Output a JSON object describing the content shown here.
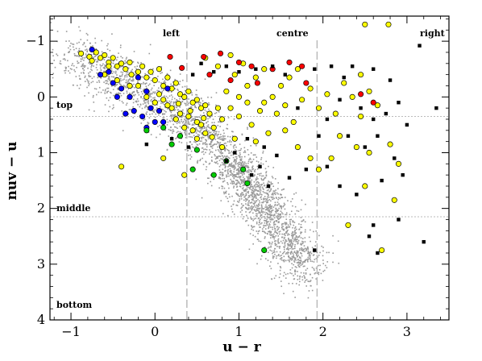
{
  "chart_data": {
    "type": "scatter",
    "xlabel": "u − r",
    "ylabel": "nuv − u",
    "xlim": [
      -1.25,
      3.5
    ],
    "ylim": [
      4,
      -1.45
    ],
    "y_inverted": true,
    "grid": false,
    "x_ticks": [
      -1,
      0,
      1,
      2,
      3
    ],
    "y_ticks": [
      -1,
      0,
      1,
      2,
      3,
      4
    ],
    "x_tick_labels": [
      "−1",
      "0",
      "1",
      "2",
      "3"
    ],
    "y_tick_labels": [
      "−1",
      "0",
      "1",
      "2",
      "3",
      "4"
    ],
    "region_labels": {
      "left": "left",
      "centre": "centre",
      "right": "right",
      "top": "top",
      "middle": "middle",
      "bottom": "bottom"
    },
    "vertical_dividers_x": [
      0.38,
      1.93
    ],
    "horizontal_dividers_y": [
      0.35,
      2.15
    ],
    "colors": {
      "background_points": "#999999",
      "yellow": "#ffff00",
      "black": "#000000",
      "red": "#ff0000",
      "blue": "#0000ff",
      "green": "#00cc00",
      "divider": "#bbbbbb"
    },
    "background_cloud": {
      "description_segments": [
        {
          "x0": -1.0,
          "y0": -0.8,
          "x1": 0.4,
          "y1": 0.4,
          "spread_x": 0.2,
          "spread_y": 0.22,
          "n": 900
        },
        {
          "x0": 0.4,
          "y0": 0.4,
          "x1": 0.95,
          "y1": 1.2,
          "spread_x": 0.15,
          "spread_y": 0.2,
          "n": 500
        },
        {
          "x0": 0.95,
          "y0": 1.2,
          "x1": 1.3,
          "y1": 2.0,
          "spread_x": 0.14,
          "spread_y": 0.2,
          "n": 650
        },
        {
          "x0": 1.3,
          "y0": 2.0,
          "x1": 1.8,
          "y1": 3.1,
          "spread_x": 0.15,
          "spread_y": 0.22,
          "n": 800
        }
      ]
    },
    "series": [
      {
        "color": "yellow",
        "points": [
          [
            -0.88,
            -0.78
          ],
          [
            -0.78,
            -0.72
          ],
          [
            -0.7,
            -0.8
          ],
          [
            -0.65,
            -0.7
          ],
          [
            -0.6,
            -0.75
          ],
          [
            -0.55,
            -0.62
          ],
          [
            -0.5,
            -0.7
          ],
          [
            -0.45,
            -0.55
          ],
          [
            -0.4,
            -0.6
          ],
          [
            -0.35,
            -0.5
          ],
          [
            -0.3,
            -0.62
          ],
          [
            -0.28,
            -0.4
          ],
          [
            -0.2,
            -0.45
          ],
          [
            -0.15,
            -0.55
          ],
          [
            -0.1,
            -0.35
          ],
          [
            -0.05,
            -0.45
          ],
          [
            0.0,
            -0.3
          ],
          [
            0.05,
            -0.5
          ],
          [
            0.1,
            -0.2
          ],
          [
            0.15,
            -0.35
          ],
          [
            0.2,
            -0.15
          ],
          [
            0.25,
            -0.25
          ],
          [
            0.3,
            -0.05
          ],
          [
            0.35,
            0.0
          ],
          [
            0.4,
            -0.1
          ],
          [
            0.45,
            0.1
          ],
          [
            0.5,
            0.05
          ],
          [
            0.55,
            0.2
          ],
          [
            0.6,
            0.15
          ],
          [
            0.65,
            0.3
          ],
          [
            0.1,
            0.05
          ],
          [
            0.2,
            0.2
          ],
          [
            0.3,
            0.3
          ],
          [
            0.4,
            0.35
          ],
          [
            0.5,
            0.45
          ],
          [
            0.45,
            0.6
          ],
          [
            0.55,
            0.5
          ],
          [
            0.6,
            0.65
          ],
          [
            -0.2,
            -0.2
          ],
          [
            -0.1,
            0.0
          ],
          [
            0.0,
            0.1
          ],
          [
            0.15,
            0.15
          ],
          [
            0.25,
            0.4
          ],
          [
            0.35,
            0.55
          ],
          [
            0.5,
            0.75
          ],
          [
            0.7,
            0.55
          ],
          [
            0.8,
            0.4
          ],
          [
            0.9,
            0.2
          ],
          [
            1.0,
            0.0
          ],
          [
            1.1,
            -0.2
          ],
          [
            1.2,
            -0.35
          ],
          [
            1.3,
            -0.5
          ],
          [
            1.0,
            0.35
          ],
          [
            1.1,
            0.1
          ],
          [
            1.25,
            0.25
          ],
          [
            1.4,
            0.0
          ],
          [
            1.5,
            -0.2
          ],
          [
            1.6,
            -0.35
          ],
          [
            1.7,
            -0.5
          ],
          [
            1.45,
            0.3
          ],
          [
            1.55,
            0.15
          ],
          [
            1.65,
            0.45
          ],
          [
            1.75,
            0.05
          ],
          [
            1.85,
            -0.15
          ],
          [
            1.95,
            0.2
          ],
          [
            2.05,
            -0.05
          ],
          [
            2.15,
            0.3
          ],
          [
            2.25,
            -0.25
          ],
          [
            2.35,
            0.0
          ],
          [
            2.45,
            0.35
          ],
          [
            2.55,
            -0.1
          ],
          [
            2.65,
            0.15
          ],
          [
            2.2,
            0.7
          ],
          [
            2.4,
            0.9
          ],
          [
            2.1,
            1.1
          ],
          [
            1.95,
            1.3
          ],
          [
            2.5,
            1.6
          ],
          [
            2.3,
            2.3
          ],
          [
            2.8,
            0.85
          ],
          [
            2.9,
            1.2
          ],
          [
            2.85,
            1.85
          ],
          [
            2.7,
            2.75
          ],
          [
            2.55,
            1.0
          ],
          [
            2.45,
            -0.4
          ],
          [
            2.5,
            -1.3
          ],
          [
            2.78,
            -1.3
          ],
          [
            -0.4,
            1.25
          ],
          [
            0.1,
            1.1
          ],
          [
            0.35,
            1.4
          ],
          [
            1.2,
            0.8
          ],
          [
            1.35,
            0.65
          ],
          [
            0.8,
            0.9
          ],
          [
            0.95,
            0.75
          ],
          [
            1.55,
            0.6
          ],
          [
            1.7,
            0.9
          ],
          [
            1.85,
            1.1
          ],
          [
            -0.6,
            -0.4
          ],
          [
            -0.75,
            -0.65
          ],
          [
            -0.3,
            -0.2
          ],
          [
            0.05,
            -0.05
          ],
          [
            0.28,
            0.12
          ],
          [
            0.42,
            0.25
          ],
          [
            0.58,
            0.38
          ],
          [
            0.68,
            0.72
          ],
          [
            0.75,
            0.2
          ],
          [
            0.85,
            -0.1
          ],
          [
            0.95,
            -0.4
          ],
          [
            1.05,
            -0.6
          ],
          [
            0.6,
            -0.7
          ],
          [
            0.75,
            -0.55
          ],
          [
            0.9,
            -0.75
          ],
          [
            1.15,
            0.5
          ],
          [
            1.3,
            0.1
          ],
          [
            -0.45,
            -0.3
          ],
          [
            -0.55,
            -0.55
          ]
        ]
      },
      {
        "color": "black",
        "points": [
          [
            3.15,
            -0.92
          ],
          [
            2.6,
            -0.5
          ],
          [
            2.8,
            -0.3
          ],
          [
            2.9,
            0.1
          ],
          [
            2.75,
            0.3
          ],
          [
            3.35,
            0.2
          ],
          [
            3.0,
            0.5
          ],
          [
            2.65,
            0.7
          ],
          [
            2.5,
            0.9
          ],
          [
            2.3,
            0.7
          ],
          [
            2.85,
            1.1
          ],
          [
            2.95,
            1.4
          ],
          [
            2.7,
            1.5
          ],
          [
            2.2,
            1.6
          ],
          [
            2.4,
            1.75
          ],
          [
            2.6,
            2.3
          ],
          [
            2.9,
            2.2
          ],
          [
            2.55,
            2.5
          ],
          [
            2.65,
            2.8
          ],
          [
            3.2,
            2.6
          ],
          [
            1.9,
            2.75
          ],
          [
            2.05,
            1.25
          ],
          [
            1.8,
            1.3
          ],
          [
            1.6,
            1.45
          ],
          [
            1.45,
            1.05
          ],
          [
            1.3,
            0.9
          ],
          [
            1.1,
            0.75
          ],
          [
            0.95,
            1.0
          ],
          [
            0.85,
            1.15
          ],
          [
            1.7,
            0.2
          ],
          [
            1.55,
            -0.4
          ],
          [
            1.4,
            -0.55
          ],
          [
            1.2,
            -0.5
          ],
          [
            1.0,
            -0.45
          ],
          [
            0.85,
            -0.55
          ],
          [
            0.7,
            -0.45
          ],
          [
            0.55,
            -0.6
          ],
          [
            0.45,
            -0.4
          ],
          [
            1.9,
            -0.5
          ],
          [
            2.1,
            -0.55
          ],
          [
            2.25,
            -0.35
          ],
          [
            2.35,
            -0.55
          ],
          [
            2.05,
            0.4
          ],
          [
            1.95,
            0.7
          ],
          [
            0.2,
            0.75
          ],
          [
            0.4,
            0.9
          ],
          [
            -0.1,
            0.85
          ],
          [
            1.25,
            1.25
          ],
          [
            1.35,
            1.6
          ],
          [
            1.15,
            1.4
          ],
          [
            2.45,
            0.2
          ],
          [
            2.6,
            0.4
          ],
          [
            2.2,
            0.05
          ]
        ]
      },
      {
        "color": "red",
        "points": [
          [
            0.18,
            -0.72
          ],
          [
            0.32,
            -0.52
          ],
          [
            0.58,
            -0.72
          ],
          [
            0.78,
            -0.78
          ],
          [
            1.0,
            -0.62
          ],
          [
            1.15,
            -0.55
          ],
          [
            1.22,
            -0.25
          ],
          [
            1.4,
            -0.5
          ],
          [
            1.6,
            -0.62
          ],
          [
            1.75,
            -0.55
          ],
          [
            1.8,
            -0.25
          ],
          [
            0.9,
            -0.3
          ],
          [
            2.45,
            -0.05
          ],
          [
            2.6,
            0.1
          ],
          [
            0.65,
            -0.4
          ]
        ]
      },
      {
        "color": "blue",
        "points": [
          [
            -0.75,
            -0.85
          ],
          [
            -0.65,
            -0.4
          ],
          [
            -0.55,
            -0.45
          ],
          [
            -0.5,
            -0.25
          ],
          [
            -0.4,
            -0.15
          ],
          [
            -0.3,
            0.0
          ],
          [
            -0.25,
            0.25
          ],
          [
            -0.15,
            0.35
          ],
          [
            -0.1,
            0.55
          ],
          [
            -0.05,
            0.2
          ],
          [
            0.0,
            0.45
          ],
          [
            -0.2,
            -0.35
          ],
          [
            -0.1,
            -0.1
          ],
          [
            0.05,
            0.25
          ],
          [
            0.1,
            0.45
          ],
          [
            -0.35,
            0.3
          ],
          [
            -0.45,
            0.0
          ],
          [
            0.15,
            -0.15
          ]
        ]
      },
      {
        "color": "green",
        "points": [
          [
            -0.1,
            0.6
          ],
          [
            0.1,
            0.55
          ],
          [
            0.2,
            0.85
          ],
          [
            0.3,
            0.7
          ],
          [
            0.5,
            0.95
          ],
          [
            0.45,
            1.3
          ],
          [
            0.7,
            1.4
          ],
          [
            0.85,
            1.15
          ],
          [
            1.1,
            1.55
          ],
          [
            1.05,
            1.3
          ],
          [
            1.3,
            2.75
          ]
        ]
      }
    ]
  }
}
